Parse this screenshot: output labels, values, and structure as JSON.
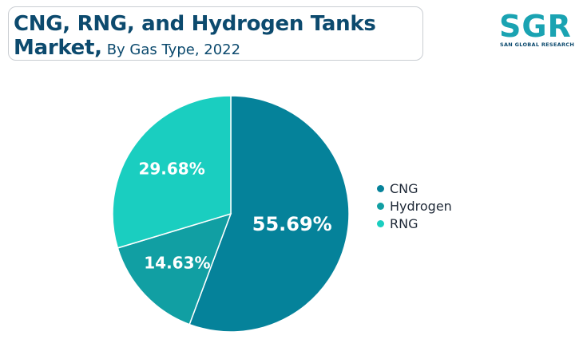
{
  "header": {
    "title_line1": "CNG, RNG, and Hydrogen Tanks",
    "title_line2_bold": "Market,",
    "title_line2_sub": "By Gas Type, 2022"
  },
  "logo": {
    "text": "SGR",
    "subtext": "SAN GLOBAL RESEARCH"
  },
  "chart_data": {
    "type": "pie",
    "title": "CNG, RNG, and Hydrogen Tanks Market, By Gas Type, 2022",
    "categories": [
      "CNG",
      "Hydrogen",
      "RNG"
    ],
    "values": [
      55.69,
      14.63,
      29.68
    ],
    "labels": [
      "55.69%",
      "14.63%",
      "29.68%"
    ],
    "colors": [
      "#05829a",
      "#119fa3",
      "#1acec0"
    ],
    "legend_position": "right"
  }
}
